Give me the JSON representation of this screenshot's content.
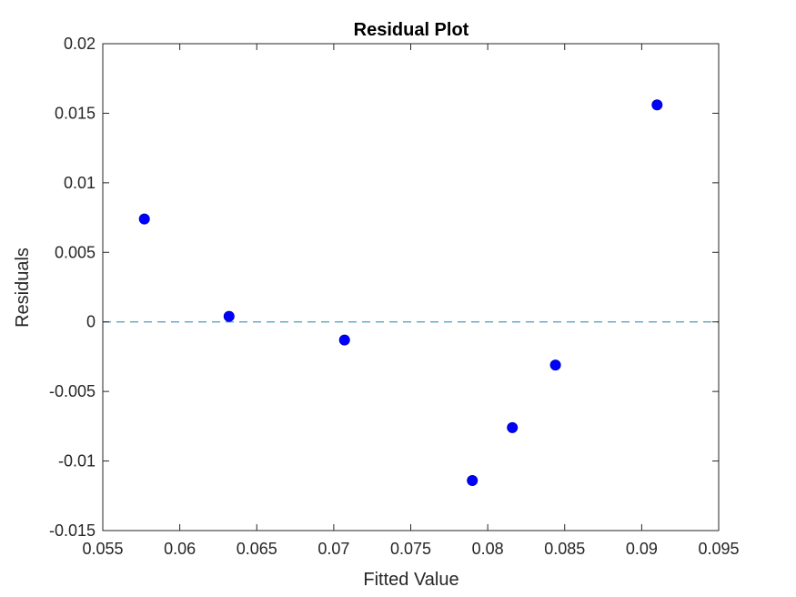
{
  "chart_data": {
    "type": "scatter",
    "title": "Residual Plot",
    "xlabel": "Fitted Value",
    "ylabel": "Residuals",
    "xlim": [
      0.055,
      0.095
    ],
    "ylim": [
      -0.015,
      0.02
    ],
    "xticks": [
      0.055,
      0.06,
      0.065,
      0.07,
      0.075,
      0.08,
      0.085,
      0.09,
      0.095
    ],
    "xtick_labels": [
      "0.055",
      "0.06",
      "0.065",
      "0.07",
      "0.075",
      "0.08",
      "0.085",
      "0.09",
      "0.095"
    ],
    "yticks": [
      -0.015,
      -0.01,
      -0.005,
      0,
      0.005,
      0.01,
      0.015,
      0.02
    ],
    "ytick_labels": [
      "-0.015",
      "-0.01",
      "-0.005",
      "0",
      "0.005",
      "0.01",
      "0.015",
      "0.02"
    ],
    "grid": false,
    "series": [
      {
        "x": [
          0.0577,
          0.0632,
          0.0707,
          0.079,
          0.0816,
          0.0844,
          0.091
        ],
        "y": [
          0.0074,
          0.0004,
          -0.0013,
          -0.0114,
          -0.0076,
          -0.0031,
          0.0156
        ]
      }
    ],
    "reference_line": {
      "y": 0,
      "style": "dashed"
    },
    "colors": {
      "marker": "#0000ff",
      "reference_line": "#4a9bc0",
      "axis": "#262626"
    }
  }
}
